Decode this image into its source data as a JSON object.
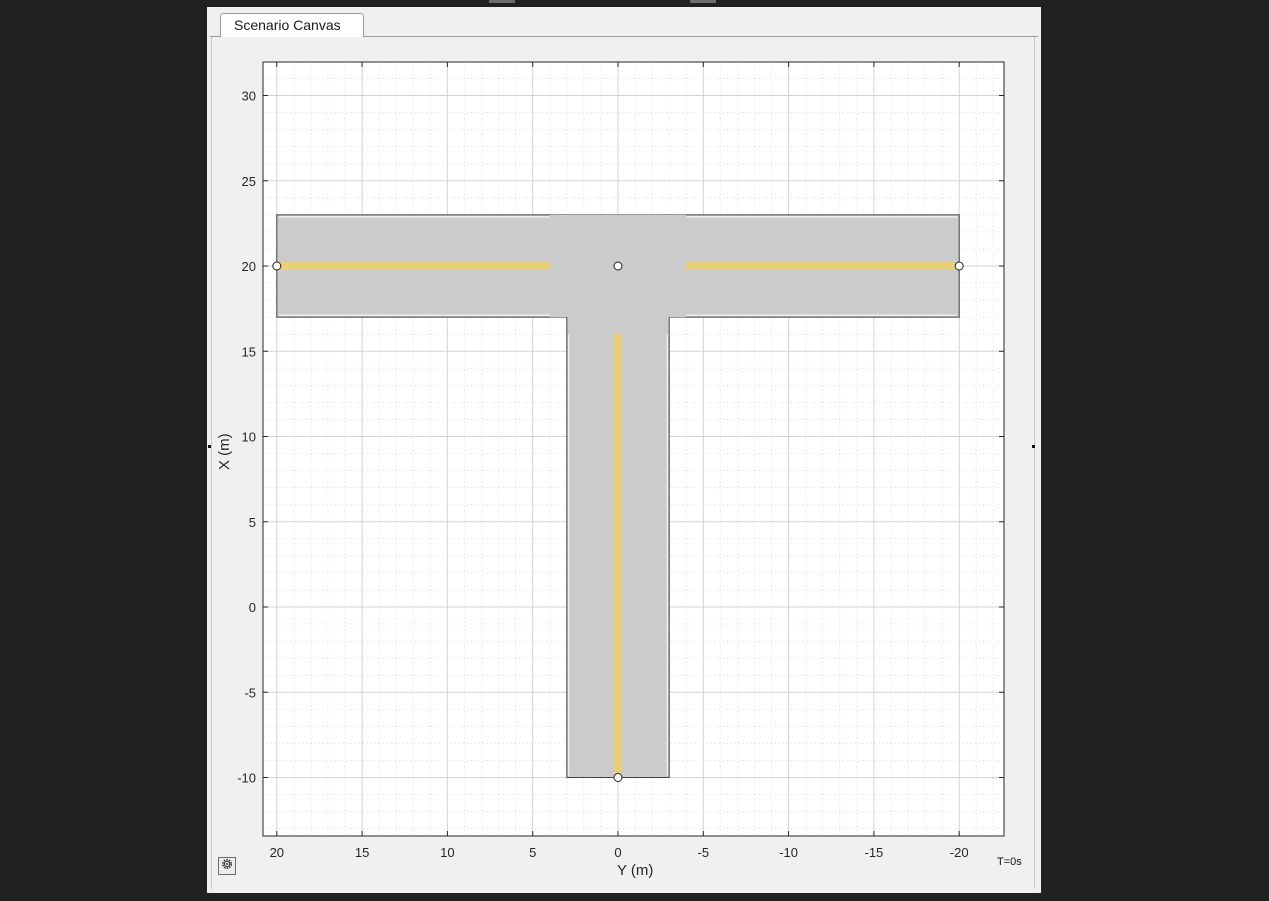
{
  "window": {
    "tab_label": "Scenario Canvas"
  },
  "plot": {
    "x_axis_label": "Y (m)",
    "y_axis_label": "X (m)",
    "x_ticks": [
      20,
      15,
      10,
      5,
      0,
      -5,
      -10,
      -15,
      -20
    ],
    "y_ticks": [
      30,
      25,
      20,
      15,
      10,
      5,
      0,
      -5,
      -10
    ],
    "x_range": [
      22.5,
      -22.5
    ],
    "y_range": [
      -13.4,
      31.9
    ],
    "x_direction": "reversed",
    "grid": "major solid, minor dotted",
    "colors": {
      "road": "#cbcbcb",
      "lane_marking": "#f2d15c",
      "grid_major": "#d3d3d3",
      "grid_minor": "#dcdcdc",
      "background": "#ffffff"
    }
  },
  "scenario": {
    "roads": [
      {
        "name": "horizontal-road",
        "center_x": 20,
        "from_y": 20,
        "to_y": -20,
        "width": 6,
        "lane_marking": "double-yellow"
      },
      {
        "name": "vertical-road",
        "center_y": 0,
        "from_x": 20,
        "to_x": -10,
        "width": 6,
        "lane_marking": "double-yellow"
      }
    ],
    "road_centers": [
      {
        "y": 20,
        "x": 20
      },
      {
        "y": 0,
        "x": 20
      },
      {
        "y": -20,
        "x": 20
      },
      {
        "y": 0,
        "x": -10
      }
    ]
  },
  "status": {
    "time_label": "T=0s"
  },
  "icons": {
    "settings": "gear-icon"
  }
}
